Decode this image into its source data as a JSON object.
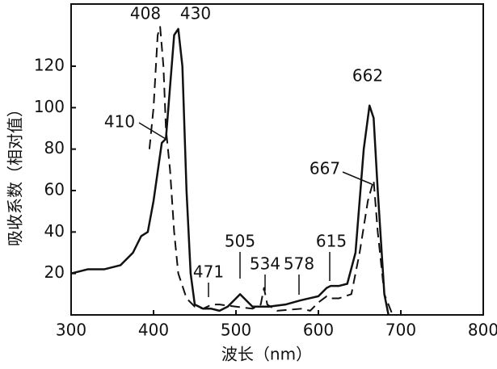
{
  "chart_data": {
    "type": "line",
    "xlabel": "波长（nm）",
    "ylabel": "吸收系数（相对值）",
    "xlim": [
      300,
      800
    ],
    "ylim": [
      0,
      150
    ],
    "xticks": [
      300,
      400,
      500,
      600,
      700,
      800
    ],
    "yticks": [
      20,
      40,
      60,
      80,
      100,
      120
    ],
    "series": [
      {
        "color": "#111111",
        "dashed": false,
        "x": [
          300,
          320,
          340,
          360,
          375,
          385,
          393,
          400,
          410,
          415,
          420,
          425,
          430,
          435,
          440,
          445,
          450,
          460,
          470,
          480,
          490,
          500,
          505,
          510,
          520,
          540,
          560,
          578,
          600,
          610,
          615,
          625,
          635,
          645,
          655,
          662,
          667,
          672,
          680,
          685
        ],
        "values": [
          20,
          22,
          22,
          24,
          30,
          38,
          40,
          55,
          83,
          85,
          110,
          135,
          138,
          120,
          60,
          20,
          5,
          3,
          3,
          2,
          4,
          8,
          10,
          8,
          4,
          4,
          5,
          7,
          9,
          13,
          14,
          14,
          15,
          30,
          80,
          101,
          95,
          60,
          10,
          0
        ]
      },
      {
        "color": "#111111",
        "dashed": true,
        "x": [
          395,
          400,
          405,
          408,
          412,
          415,
          420,
          425,
          430,
          440,
          450,
          460,
          471,
          480,
          500,
          520,
          530,
          534,
          538,
          550,
          580,
          590,
          600,
          610,
          615,
          625,
          640,
          650,
          660,
          667,
          672,
          680,
          690
        ],
        "values": [
          80,
          100,
          135,
          139,
          120,
          90,
          70,
          40,
          20,
          8,
          4,
          3,
          5,
          5,
          4,
          3,
          5,
          13,
          5,
          2,
          3,
          2,
          6,
          9,
          8,
          8,
          10,
          30,
          55,
          65,
          40,
          10,
          0
        ]
      }
    ],
    "annotations": [
      408,
      430,
      410,
      662,
      667,
      471,
      505,
      534,
      578,
      615
    ]
  }
}
